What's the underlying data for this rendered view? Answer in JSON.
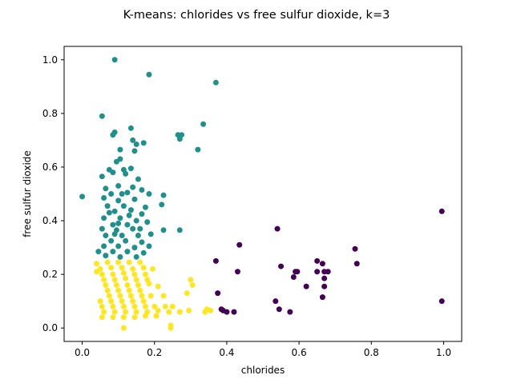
{
  "chart_data": {
    "type": "scatter",
    "title": "K-means: chlorides vs free sulfur dioxide, k=3",
    "xlabel": "chlorides",
    "ylabel": "free sulfur dioxide",
    "xlim": [
      -0.05,
      1.05
    ],
    "ylim": [
      -0.05,
      1.05
    ],
    "xticks": [
      0.0,
      0.2,
      0.4,
      0.6,
      0.8,
      1.0
    ],
    "yticks": [
      0.0,
      0.2,
      0.4,
      0.6,
      0.8,
      1.0
    ],
    "xtick_labels": [
      "0.0",
      "0.2",
      "0.4",
      "0.6",
      "0.8",
      "1.0"
    ],
    "ytick_labels": [
      "0.0",
      "0.2",
      "0.4",
      "0.6",
      "0.8",
      "1.0"
    ],
    "grid": false,
    "series": [
      {
        "cluster": 0,
        "color": "#440154",
        "points": [
          [
            0.37,
            0.25
          ],
          [
            0.375,
            0.13
          ],
          [
            0.385,
            0.07
          ],
          [
            0.39,
            0.065
          ],
          [
            0.4,
            0.06
          ],
          [
            0.42,
            0.06
          ],
          [
            0.43,
            0.21
          ],
          [
            0.435,
            0.31
          ],
          [
            0.535,
            0.1
          ],
          [
            0.54,
            0.37
          ],
          [
            0.545,
            0.07
          ],
          [
            0.55,
            0.23
          ],
          [
            0.575,
            0.06
          ],
          [
            0.585,
            0.19
          ],
          [
            0.59,
            0.21
          ],
          [
            0.595,
            0.21
          ],
          [
            0.62,
            0.155
          ],
          [
            0.65,
            0.25
          ],
          [
            0.65,
            0.21
          ],
          [
            0.665,
            0.24
          ],
          [
            0.67,
            0.21
          ],
          [
            0.67,
            0.185
          ],
          [
            0.67,
            0.155
          ],
          [
            0.665,
            0.115
          ],
          [
            0.68,
            0.21
          ],
          [
            0.755,
            0.295
          ],
          [
            0.76,
            0.24
          ],
          [
            0.995,
            0.435
          ],
          [
            0.995,
            0.1
          ]
        ]
      },
      {
        "cluster": 1,
        "color": "#21908d",
        "points": [
          [
            0.09,
            1.0
          ],
          [
            0.185,
            0.945
          ],
          [
            0.37,
            0.915
          ],
          [
            0.055,
            0.79
          ],
          [
            0.09,
            0.73
          ],
          [
            0.085,
            0.72
          ],
          [
            0.135,
            0.745
          ],
          [
            0.14,
            0.7
          ],
          [
            0.15,
            0.685
          ],
          [
            0.17,
            0.69
          ],
          [
            0.265,
            0.72
          ],
          [
            0.27,
            0.705
          ],
          [
            0.275,
            0.72
          ],
          [
            0.335,
            0.76
          ],
          [
            0.145,
            0.66
          ],
          [
            0.105,
            0.665
          ],
          [
            0.32,
            0.665
          ],
          [
            0.105,
            0.63
          ],
          [
            0.095,
            0.62
          ],
          [
            0.115,
            0.59
          ],
          [
            0.075,
            0.59
          ],
          [
            0.135,
            0.595
          ],
          [
            0.055,
            0.565
          ],
          [
            0.085,
            0.58
          ],
          [
            0.12,
            0.575
          ],
          [
            0.155,
            0.555
          ],
          [
            0.065,
            0.52
          ],
          [
            0.1,
            0.53
          ],
          [
            0.14,
            0.525
          ],
          [
            0.165,
            0.515
          ],
          [
            0.08,
            0.5
          ],
          [
            0.125,
            0.505
          ],
          [
            0.185,
            0.5
          ],
          [
            0.225,
            0.495
          ],
          [
            -0.0,
            0.49
          ],
          [
            0.06,
            0.485
          ],
          [
            0.1,
            0.475
          ],
          [
            0.145,
            0.48
          ],
          [
            0.07,
            0.455
          ],
          [
            0.115,
            0.455
          ],
          [
            0.175,
            0.45
          ],
          [
            0.22,
            0.46
          ],
          [
            0.09,
            0.435
          ],
          [
            0.135,
            0.44
          ],
          [
            0.165,
            0.425
          ],
          [
            0.06,
            0.41
          ],
          [
            0.105,
            0.41
          ],
          [
            0.15,
            0.4
          ],
          [
            0.18,
            0.395
          ],
          [
            0.085,
            0.385
          ],
          [
            0.125,
            0.385
          ],
          [
            0.055,
            0.37
          ],
          [
            0.095,
            0.365
          ],
          [
            0.14,
            0.37
          ],
          [
            0.225,
            0.365
          ],
          [
            0.27,
            0.365
          ],
          [
            0.065,
            0.345
          ],
          [
            0.11,
            0.345
          ],
          [
            0.155,
            0.345
          ],
          [
            0.19,
            0.35
          ],
          [
            0.08,
            0.325
          ],
          [
            0.12,
            0.325
          ],
          [
            0.165,
            0.32
          ],
          [
            0.06,
            0.305
          ],
          [
            0.1,
            0.305
          ],
          [
            0.145,
            0.3
          ],
          [
            0.185,
            0.305
          ],
          [
            0.045,
            0.285
          ],
          [
            0.085,
            0.285
          ],
          [
            0.125,
            0.285
          ],
          [
            0.17,
            0.28
          ],
          [
            0.065,
            0.27
          ],
          [
            0.105,
            0.265
          ],
          [
            0.15,
            0.265
          ],
          [
            0.09,
            0.35
          ],
          [
            0.13,
            0.42
          ],
          [
            0.11,
            0.5
          ],
          [
            0.075,
            0.43
          ],
          [
            0.16,
            0.37
          ],
          [
            0.1,
            0.39
          ]
        ]
      },
      {
        "cluster": 2,
        "color": "#fde725",
        "points": [
          [
            0.04,
            0.24
          ],
          [
            0.07,
            0.245
          ],
          [
            0.1,
            0.245
          ],
          [
            0.13,
            0.245
          ],
          [
            0.16,
            0.245
          ],
          [
            0.05,
            0.22
          ],
          [
            0.08,
            0.225
          ],
          [
            0.11,
            0.225
          ],
          [
            0.14,
            0.22
          ],
          [
            0.17,
            0.225
          ],
          [
            0.195,
            0.22
          ],
          [
            0.055,
            0.2
          ],
          [
            0.085,
            0.2
          ],
          [
            0.115,
            0.205
          ],
          [
            0.145,
            0.2
          ],
          [
            0.175,
            0.2
          ],
          [
            0.06,
            0.18
          ],
          [
            0.09,
            0.18
          ],
          [
            0.12,
            0.185
          ],
          [
            0.15,
            0.18
          ],
          [
            0.18,
            0.18
          ],
          [
            0.065,
            0.16
          ],
          [
            0.095,
            0.16
          ],
          [
            0.125,
            0.16
          ],
          [
            0.155,
            0.16
          ],
          [
            0.185,
            0.165
          ],
          [
            0.07,
            0.14
          ],
          [
            0.1,
            0.14
          ],
          [
            0.13,
            0.14
          ],
          [
            0.16,
            0.14
          ],
          [
            0.075,
            0.12
          ],
          [
            0.105,
            0.12
          ],
          [
            0.135,
            0.12
          ],
          [
            0.165,
            0.12
          ],
          [
            0.05,
            0.1
          ],
          [
            0.08,
            0.1
          ],
          [
            0.11,
            0.1
          ],
          [
            0.14,
            0.1
          ],
          [
            0.17,
            0.1
          ],
          [
            0.055,
            0.08
          ],
          [
            0.085,
            0.08
          ],
          [
            0.115,
            0.08
          ],
          [
            0.145,
            0.08
          ],
          [
            0.175,
            0.08
          ],
          [
            0.2,
            0.08
          ],
          [
            0.23,
            0.08
          ],
          [
            0.06,
            0.06
          ],
          [
            0.09,
            0.06
          ],
          [
            0.12,
            0.06
          ],
          [
            0.15,
            0.06
          ],
          [
            0.18,
            0.06
          ],
          [
            0.21,
            0.065
          ],
          [
            0.24,
            0.06
          ],
          [
            0.27,
            0.06
          ],
          [
            0.055,
            0.04
          ],
          [
            0.085,
            0.04
          ],
          [
            0.115,
            0.04
          ],
          [
            0.145,
            0.04
          ],
          [
            0.175,
            0.045
          ],
          [
            0.205,
            0.045
          ],
          [
            0.245,
            0.01
          ],
          [
            0.245,
            0.0
          ],
          [
            0.115,
            0.0
          ],
          [
            0.3,
            0.18
          ],
          [
            0.305,
            0.16
          ],
          [
            0.21,
            0.155
          ],
          [
            0.295,
            0.065
          ],
          [
            0.34,
            0.06
          ],
          [
            0.345,
            0.07
          ],
          [
            0.355,
            0.065
          ],
          [
            0.25,
            0.08
          ],
          [
            0.29,
            0.13
          ],
          [
            0.225,
            0.12
          ],
          [
            0.04,
            0.21
          ],
          [
            0.19,
            0.12
          ]
        ]
      }
    ]
  }
}
